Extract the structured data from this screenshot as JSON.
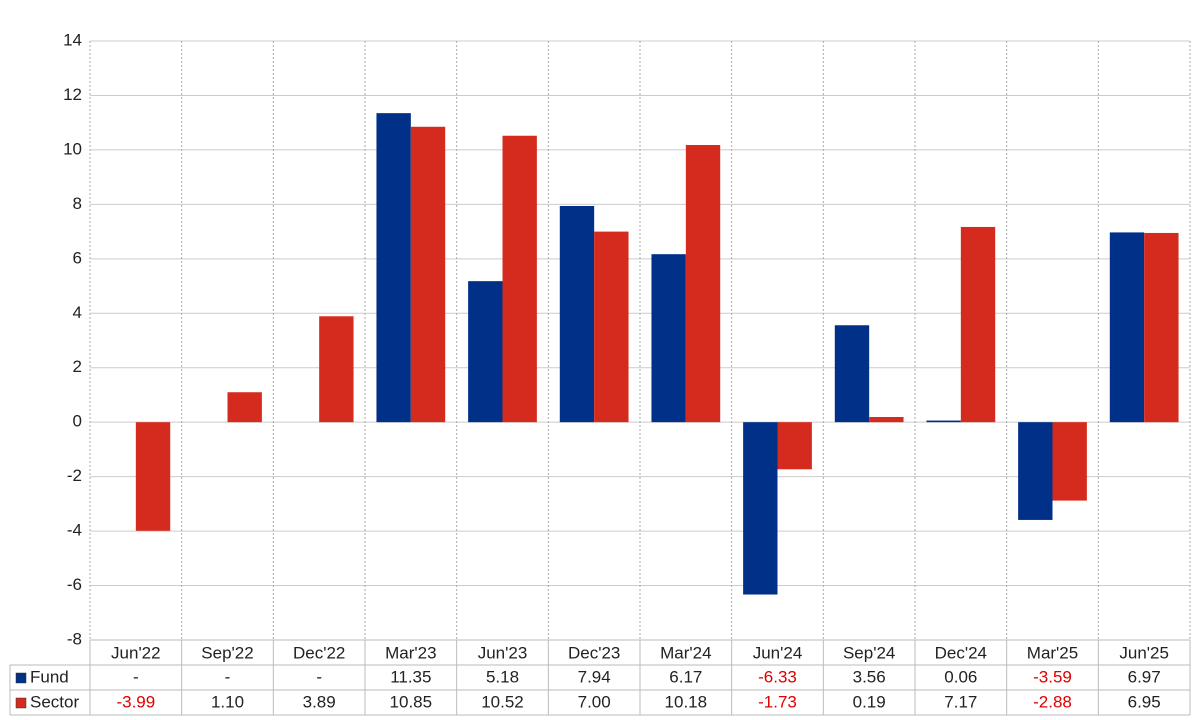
{
  "chart_data": {
    "type": "bar",
    "categories": [
      "Jun'22",
      "Sep'22",
      "Dec'22",
      "Mar'23",
      "Jun'23",
      "Dec'23",
      "Mar'24",
      "Jun'24",
      "Sep'24",
      "Dec'24",
      "Mar'25",
      "Jun'25"
    ],
    "series": [
      {
        "name": "Fund",
        "color": "#003087",
        "values": [
          null,
          null,
          null,
          11.35,
          5.18,
          7.94,
          6.17,
          -6.33,
          3.56,
          0.06,
          -3.59,
          6.97
        ],
        "value_labels": [
          "-",
          "-",
          "-",
          "11.35",
          "5.18",
          "7.94",
          "6.17",
          "-6.33",
          "3.56",
          "0.06",
          "-3.59",
          "6.97"
        ]
      },
      {
        "name": "Sector",
        "color": "#d52b1e",
        "values": [
          -3.99,
          1.1,
          3.89,
          10.85,
          10.52,
          7.0,
          10.18,
          -1.73,
          0.19,
          7.17,
          -2.88,
          6.95
        ],
        "value_labels": [
          "-3.99",
          "1.10",
          "3.89",
          "10.85",
          "10.52",
          "7.00",
          "10.18",
          "-1.73",
          "0.19",
          "7.17",
          "-2.88",
          "6.95"
        ]
      }
    ],
    "ylim": [
      -8,
      14
    ],
    "yticks": [
      -8,
      -6,
      -4,
      -2,
      0,
      2,
      4,
      6,
      8,
      10,
      12,
      14
    ],
    "grid": true,
    "negative_label_color": "#e00000"
  }
}
